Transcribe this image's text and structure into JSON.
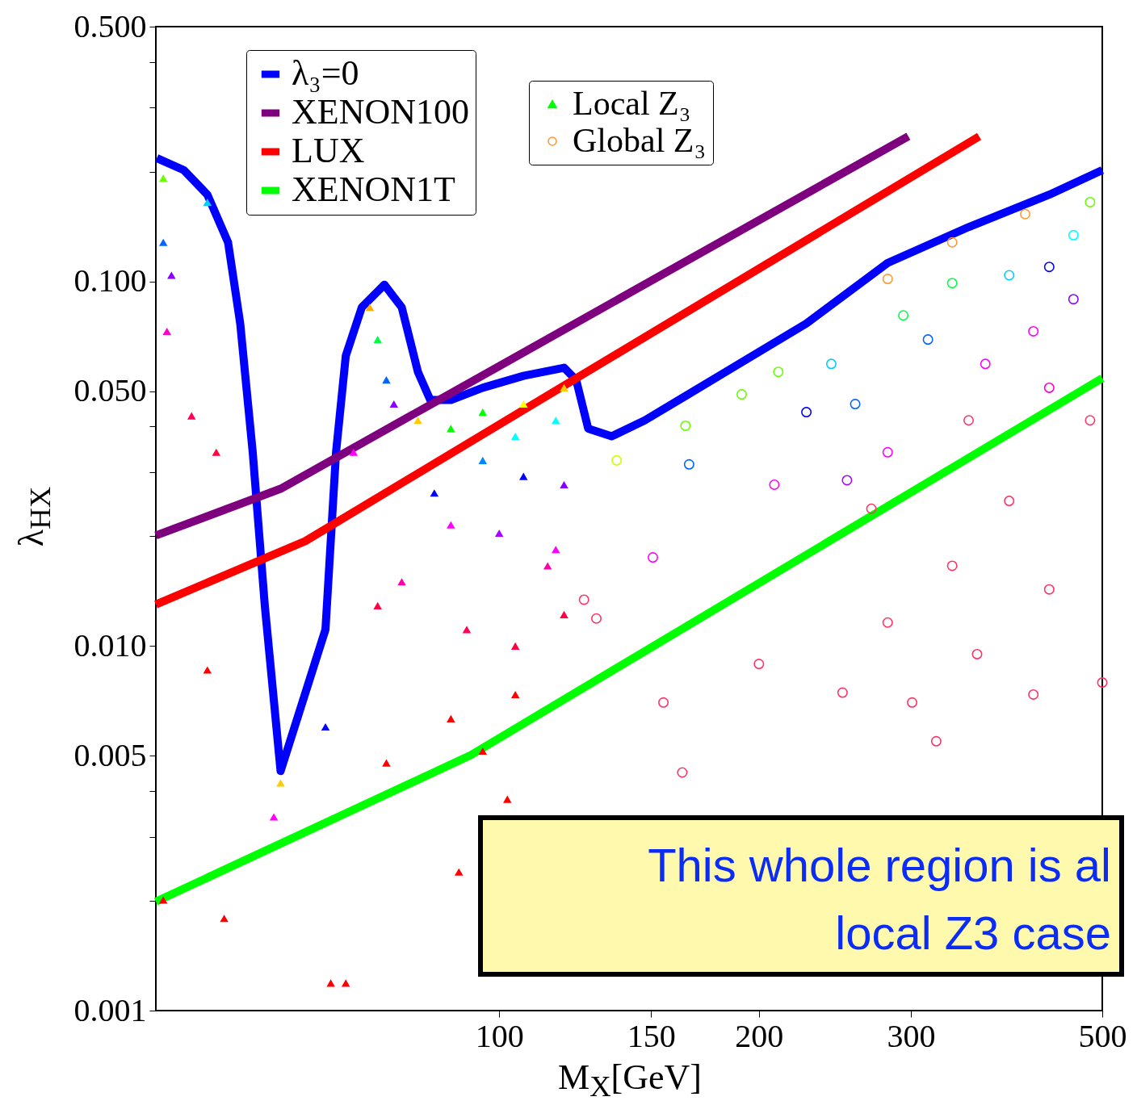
{
  "chart_data": {
    "type": "line",
    "xlabel": "M$_{X}$[GeV]",
    "ylabel": "λ$_{HX}$",
    "log": "xy",
    "legend": "top left",
    "xlim": [
      40,
      500
    ],
    "xticks": [
      100,
      150,
      200,
      300,
      500
    ],
    "ylim": [
      0.001,
      0.5
    ],
    "yticks": [
      {
        "value": 0.001,
        "label": "0.001"
      },
      {
        "value": 0.002,
        "label": null
      },
      {
        "value": 0.003,
        "label": null
      },
      {
        "value": 0.004,
        "label": null
      },
      {
        "value": 0.005,
        "label": "0.005"
      },
      {
        "value": 0.01,
        "label": "0.010"
      },
      {
        "value": 0.02,
        "label": null
      },
      {
        "value": 0.03,
        "label": null
      },
      {
        "value": 0.04,
        "label": null
      },
      {
        "value": 0.05,
        "label": "0.050"
      },
      {
        "value": 0.1,
        "label": "0.100"
      },
      {
        "value": 0.2,
        "label": null
      },
      {
        "value": 0.3,
        "label": null
      },
      {
        "value": 0.4,
        "label": null
      },
      {
        "value": 0.5,
        "label": "0.500"
      }
    ],
    "annotations": [
      "This whole region is al",
      "local Z3 case"
    ],
    "series": [
      {
        "type": "line",
        "name": "λ₃=0",
        "color": "#0000ff",
        "x": [
          40.1,
          43.1,
          45.9,
          48.5,
          50.1,
          51.8,
          53.5,
          55.8,
          62.9,
          64.7,
          66.4,
          69.3,
          73.6,
          77.1,
          80.5,
          83.2,
          87.9,
          95.7,
          106.7,
          118.9,
          122.8,
          126.8,
          135,
          147.5,
          164.4,
          183,
          227,
          282,
          350,
          434,
          500
        ],
        "values": [
          0.218,
          0.202,
          0.173,
          0.128,
          0.0767,
          0.034,
          0.0129,
          0.00454,
          0.0111,
          0.034,
          0.0625,
          0.0849,
          0.098,
          0.0849,
          0.0565,
          0.0473,
          0.0473,
          0.0511,
          0.0551,
          0.058,
          0.0537,
          0.0395,
          0.0376,
          0.0416,
          0.0485,
          0.0565,
          0.0767,
          0.1124,
          0.141,
          0.173,
          0.202
        ]
      },
      {
        "type": "line",
        "name": "XENON100",
        "color": "#7f007f",
        "x": [
          40,
          55.8,
          100,
          298
        ],
        "values": [
          0.0201,
          0.027,
          0.0586,
          0.25
        ]
      },
      {
        "type": "line",
        "name": "LUX",
        "color": "#ff0000",
        "x": [
          40,
          59.6,
          100,
          360
        ],
        "values": [
          0.013,
          0.0194,
          0.0405,
          0.25
        ]
      },
      {
        "type": "line",
        "name": "XENON1T",
        "color": "#00ff00",
        "x": [
          40,
          92.7,
          500
        ],
        "values": [
          0.00199,
          0.00502,
          0.0543
        ]
      },
      {
        "type": "scatter",
        "name": "Local Z₃",
        "color": "#00ff00",
        "marker": "triangle",
        "x": [
          40.8,
          40.8,
          41.7,
          41.2,
          44.0,
          45.9,
          47.0,
          45.9,
          40.8,
          48.0,
          55.8,
          54.8,
          62.9,
          63.8,
          66.4,
          70.8,
          72.3,
          74.0,
          75.5,
          67.8,
          80.5,
          87.9,
          95.7,
          106.7,
          118.9,
          104.4,
          116.3,
          95.7,
          106.7,
          118.9,
          84.1,
          87.9,
          100,
          113.8,
          77.1,
          72.3,
          91.7,
          104.4,
          118.9,
          87.9,
          104.4,
          95.7,
          74.0,
          89.8,
          102.2,
          116.3
        ],
        "values": [
          0.192,
          0.128,
          0.104,
          0.073,
          0.0428,
          0.165,
          0.034,
          0.0086,
          0.00201,
          0.00179,
          0.00421,
          0.0034,
          0.006,
          0.00119,
          0.00119,
          0.0849,
          0.0693,
          0.0537,
          0.0461,
          0.034,
          0.0416,
          0.0395,
          0.0438,
          0.0461,
          0.0511,
          0.0376,
          0.0416,
          0.0323,
          0.0292,
          0.0277,
          0.0263,
          0.0215,
          0.0204,
          0.0166,
          0.015,
          0.0129,
          0.0111,
          0.01,
          0.0122,
          0.00632,
          0.00736,
          0.00515,
          0.00478,
          0.0024,
          0.0038,
          0.0184
        ],
        "colors": [
          "#66ff00",
          "#0066ff",
          "#8800ff",
          "#ff00cc",
          "#ff0055",
          "#00ccff",
          "#ff0040",
          "#ff0000",
          "#ff0000",
          "#ff0000",
          "#ffcc00",
          "#ff00ff",
          "#0000ff",
          "#ff0000",
          "#ff0000",
          "#ffaa00",
          "#00ff44",
          "#0066ff",
          "#8800ff",
          "#ff00ff",
          "#ffcc00",
          "#00ff00",
          "#00ff00",
          "#ffff00",
          "#ffcc00",
          "#00ffff",
          "#00ffff",
          "#0088ff",
          "#0000ff",
          "#8800ff",
          "#0000ff",
          "#ff00ff",
          "#aa00ff",
          "#ff00aa",
          "#ff00aa",
          "#ff0044",
          "#ff0055",
          "#ff0044",
          "#ff0044",
          "#ff0000",
          "#ff0000",
          "#ff0000",
          "#ff0000",
          "#ff0000",
          "#ff0000",
          "#ff00ff"
        ]
      },
      {
        "type": "scatter",
        "name": "Global Z₃",
        "color": "#ff9933",
        "marker": "circle",
        "x": [
          335,
          407,
          282,
          136.8,
          150.7,
          166,
          125.4,
          129.6,
          164.4,
          191,
          210.6,
          242.6,
          227,
          258.6,
          208.4,
          253,
          270,
          282,
          314,
          294,
          335,
          390,
          434,
          463,
          484,
          463,
          416,
          366,
          434,
          350,
          484,
          390,
          335,
          434,
          282,
          301,
          358,
          416,
          321,
          250,
          200,
          155,
          163,
          500
        ],
        "values": [
          0.128,
          0.153,
          0.1016,
          0.0323,
          0.0175,
          0.0315,
          0.0134,
          0.0119,
          0.0402,
          0.049,
          0.0565,
          0.0594,
          0.0438,
          0.0461,
          0.0277,
          0.0285,
          0.0238,
          0.034,
          0.0693,
          0.0807,
          0.099,
          0.104,
          0.1096,
          0.134,
          0.165,
          0.0894,
          0.073,
          0.0594,
          0.0511,
          0.0416,
          0.0416,
          0.025,
          0.0166,
          0.0143,
          0.0116,
          0.007,
          0.0095,
          0.00736,
          0.00548,
          0.00745,
          0.00893,
          0.007,
          0.0045,
          0.00794
        ],
        "colors": [
          "#ff9933",
          "#ff9933",
          "#ff9933",
          "#ccff00",
          "#ff00ff",
          "#0066ff",
          "#ff3366",
          "#ff3366",
          "#66ff00",
          "#66ff00",
          "#66ff00",
          "#00ccff",
          "#0000ff",
          "#0066ff",
          "#ff00ff",
          "#aa00ff",
          "#ff3366",
          "#ff00ff",
          "#0066ff",
          "#00ff44",
          "#00ff44",
          "#00ccff",
          "#0000ff",
          "#00ffff",
          "#66ff00",
          "#8800ff",
          "#ff00ff",
          "#ff00ff",
          "#ff00cc",
          "#ff3366",
          "#ff3366",
          "#ff3366",
          "#ff3366",
          "#ff3366",
          "#ff3366",
          "#ff3366",
          "#ff3366",
          "#ff3366",
          "#ff3366",
          "#ff3366",
          "#ff3366",
          "#ff3366",
          "#ff3366",
          "#ff3366"
        ]
      }
    ]
  }
}
